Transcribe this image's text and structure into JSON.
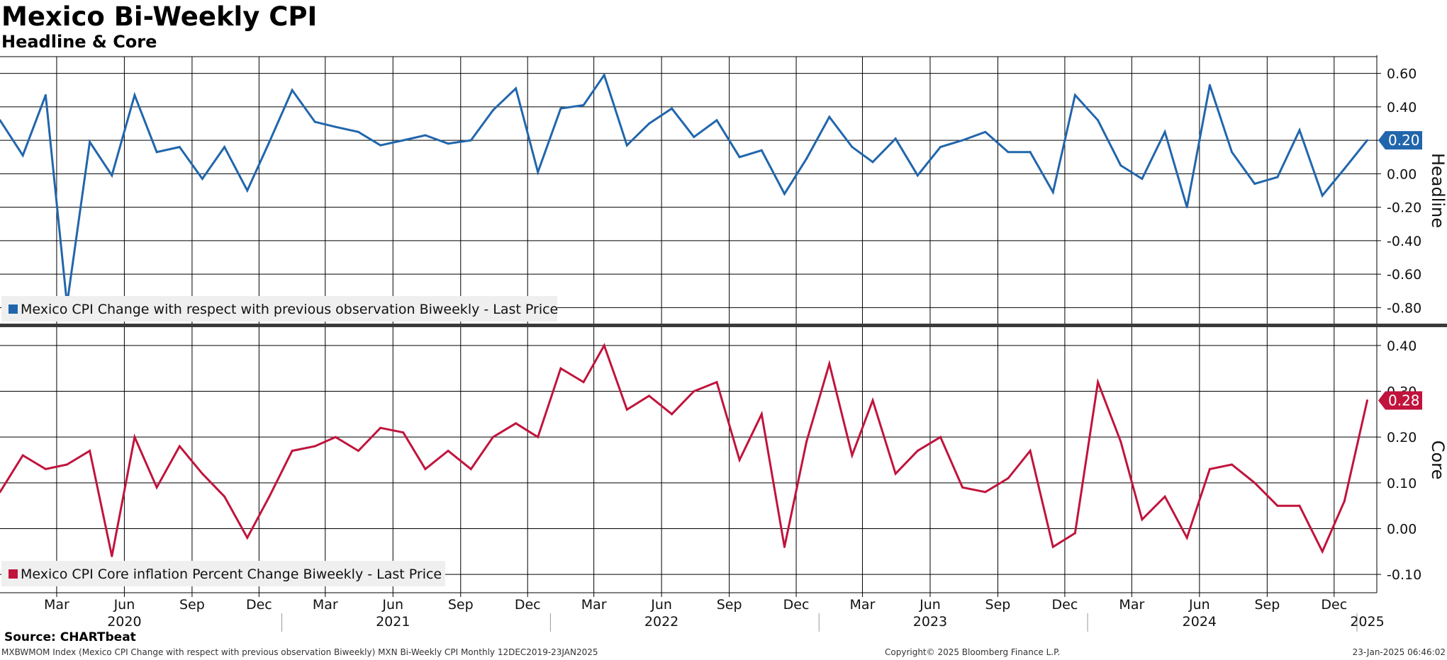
{
  "title": "Mexico Bi-Weekly CPI",
  "subtitle": "Headline & Core",
  "source": "Source: CHARTbeat",
  "footer": {
    "left": "MXBWMOM Index (Mexico CPI Change with respect with previous observation Biweekly) MXN Bi-Weekly CPI  Monthly 12DEC2019-23JAN2025",
    "center": "Copyright© 2025 Bloomberg Finance L.P.",
    "right": "23-Jan-2025 06:46:02"
  },
  "colors": {
    "headline": "#2166ac",
    "core": "#c0143c",
    "grid": "#000000",
    "legend_bg": "#efefef"
  },
  "chart_data": [
    {
      "type": "line",
      "ylabel": "Headline",
      "ylim": [
        -0.9,
        0.7
      ],
      "yticks": [
        "0.60",
        "0.40",
        "0.20",
        "0.00",
        "-0.20",
        "-0.40",
        "-0.60",
        "-0.80"
      ],
      "last_value_label": "0.20",
      "legend": "Mexico CPI Change with respect with previous observation Biweekly - Last Price",
      "series": [
        {
          "name": "Mexico CPI Change with respect with previous observation Biweekly - Last Price",
          "x": [
            "2019-12-15",
            "2020-01-15",
            "2020-02-15",
            "2020-03-15",
            "2020-04-15",
            "2020-05-15",
            "2020-06-15",
            "2020-07-15",
            "2020-08-15",
            "2020-09-15",
            "2020-10-15",
            "2020-11-15",
            "2020-12-15",
            "2021-01-15",
            "2021-02-15",
            "2021-03-15",
            "2021-04-15",
            "2021-05-15",
            "2021-06-15",
            "2021-07-15",
            "2021-08-15",
            "2021-09-15",
            "2021-10-15",
            "2021-11-15",
            "2021-12-15",
            "2022-01-15",
            "2022-02-15",
            "2022-03-15",
            "2022-04-15",
            "2022-05-15",
            "2022-06-15",
            "2022-07-15",
            "2022-08-15",
            "2022-09-15",
            "2022-10-15",
            "2022-11-15",
            "2022-12-15",
            "2023-01-15",
            "2023-02-15",
            "2023-03-15",
            "2023-04-15",
            "2023-05-15",
            "2023-06-15",
            "2023-07-15",
            "2023-08-15",
            "2023-09-15",
            "2023-10-15",
            "2023-11-15",
            "2023-12-15",
            "2024-01-15",
            "2024-02-15",
            "2024-03-15",
            "2024-04-15",
            "2024-05-15",
            "2024-06-15",
            "2024-07-15",
            "2024-08-15",
            "2024-09-15",
            "2024-10-15",
            "2024-11-15",
            "2024-12-15",
            "2025-01-15"
          ],
          "values": [
            0.32,
            0.11,
            0.47,
            -0.78,
            0.19,
            -0.01,
            0.47,
            0.13,
            0.16,
            -0.03,
            0.16,
            -0.1,
            0.19,
            0.5,
            0.31,
            0.28,
            0.25,
            0.17,
            0.2,
            0.23,
            0.18,
            0.2,
            0.38,
            0.51,
            0.01,
            0.39,
            0.41,
            0.59,
            0.17,
            0.3,
            0.39,
            0.22,
            0.32,
            0.1,
            0.14,
            -0.12,
            0.09,
            0.34,
            0.16,
            0.07,
            0.21,
            -0.01,
            0.16,
            0.2,
            0.25,
            0.13,
            0.13,
            -0.11,
            0.47,
            0.32,
            0.05,
            -0.03,
            0.25,
            -0.2,
            0.53,
            0.13,
            -0.06,
            -0.02,
            0.26,
            -0.13,
            0.03,
            0.2
          ]
        }
      ]
    },
    {
      "type": "line",
      "ylabel": "Core",
      "ylim": [
        -0.14,
        0.44
      ],
      "yticks": [
        "0.40",
        "0.30",
        "0.20",
        "0.10",
        "0.00",
        "-0.10"
      ],
      "last_value_label": "0.28",
      "legend": "Mexico CPI Core inflation Percent Change Biweekly - Last Price",
      "series": [
        {
          "name": "Mexico CPI Core inflation Percent Change Biweekly - Last Price",
          "x": [
            "2019-12-15",
            "2020-01-15",
            "2020-02-15",
            "2020-03-15",
            "2020-04-15",
            "2020-05-15",
            "2020-06-15",
            "2020-07-15",
            "2020-08-15",
            "2020-09-15",
            "2020-10-15",
            "2020-11-15",
            "2020-12-15",
            "2021-01-15",
            "2021-02-15",
            "2021-03-15",
            "2021-04-15",
            "2021-05-15",
            "2021-06-15",
            "2021-07-15",
            "2021-08-15",
            "2021-09-15",
            "2021-10-15",
            "2021-11-15",
            "2021-12-15",
            "2022-01-15",
            "2022-02-15",
            "2022-03-15",
            "2022-04-15",
            "2022-05-15",
            "2022-06-15",
            "2022-07-15",
            "2022-08-15",
            "2022-09-15",
            "2022-10-15",
            "2022-11-15",
            "2022-12-15",
            "2023-01-15",
            "2023-02-15",
            "2023-03-15",
            "2023-04-15",
            "2023-05-15",
            "2023-06-15",
            "2023-07-15",
            "2023-08-15",
            "2023-09-15",
            "2023-10-15",
            "2023-11-15",
            "2023-12-15",
            "2024-01-15",
            "2024-02-15",
            "2024-03-15",
            "2024-04-15",
            "2024-05-15",
            "2024-06-15",
            "2024-07-15",
            "2024-08-15",
            "2024-09-15",
            "2024-10-15",
            "2024-11-15",
            "2024-12-15",
            "2025-01-15"
          ],
          "values": [
            0.08,
            0.16,
            0.13,
            0.14,
            0.17,
            -0.06,
            0.2,
            0.09,
            0.18,
            0.12,
            0.07,
            -0.02,
            0.07,
            0.17,
            0.18,
            0.2,
            0.17,
            0.22,
            0.21,
            0.13,
            0.17,
            0.13,
            0.2,
            0.23,
            0.2,
            0.35,
            0.32,
            0.4,
            0.26,
            0.29,
            0.25,
            0.3,
            0.32,
            0.15,
            0.25,
            -0.04,
            0.19,
            0.36,
            0.16,
            0.28,
            0.12,
            0.17,
            0.2,
            0.09,
            0.08,
            0.11,
            0.17,
            -0.04,
            -0.01,
            0.32,
            0.19,
            0.02,
            0.07,
            -0.02,
            0.13,
            0.14,
            0.1,
            0.05,
            0.05,
            -0.05,
            0.06,
            0.28
          ]
        }
      ]
    }
  ],
  "xaxis": {
    "month_ticks": [
      {
        "date": "2020-03-01",
        "label": "Mar"
      },
      {
        "date": "2020-06-01",
        "label": "Jun"
      },
      {
        "date": "2020-09-01",
        "label": "Sep"
      },
      {
        "date": "2020-12-01",
        "label": "Dec"
      },
      {
        "date": "2021-03-01",
        "label": "Mar"
      },
      {
        "date": "2021-06-01",
        "label": "Jun"
      },
      {
        "date": "2021-09-01",
        "label": "Sep"
      },
      {
        "date": "2021-12-01",
        "label": "Dec"
      },
      {
        "date": "2022-03-01",
        "label": "Mar"
      },
      {
        "date": "2022-06-01",
        "label": "Jun"
      },
      {
        "date": "2022-09-01",
        "label": "Sep"
      },
      {
        "date": "2022-12-01",
        "label": "Dec"
      },
      {
        "date": "2023-03-01",
        "label": "Mar"
      },
      {
        "date": "2023-06-01",
        "label": "Jun"
      },
      {
        "date": "2023-09-01",
        "label": "Sep"
      },
      {
        "date": "2023-12-01",
        "label": "Dec"
      },
      {
        "date": "2024-03-01",
        "label": "Mar"
      },
      {
        "date": "2024-06-01",
        "label": "Jun"
      },
      {
        "date": "2024-09-01",
        "label": "Sep"
      },
      {
        "date": "2024-12-01",
        "label": "Dec"
      }
    ],
    "year_labels": [
      {
        "date": "2020-06-01",
        "label": "2020"
      },
      {
        "date": "2021-06-01",
        "label": "2021"
      },
      {
        "date": "2022-06-01",
        "label": "2022"
      },
      {
        "date": "2023-06-01",
        "label": "2023"
      },
      {
        "date": "2024-06-01",
        "label": "2024"
      },
      {
        "date": "2025-01-15",
        "label": "2025"
      }
    ],
    "year_boundaries": [
      "2021-01-01",
      "2022-01-01",
      "2023-01-01",
      "2024-01-01",
      "2025-01-01"
    ]
  }
}
